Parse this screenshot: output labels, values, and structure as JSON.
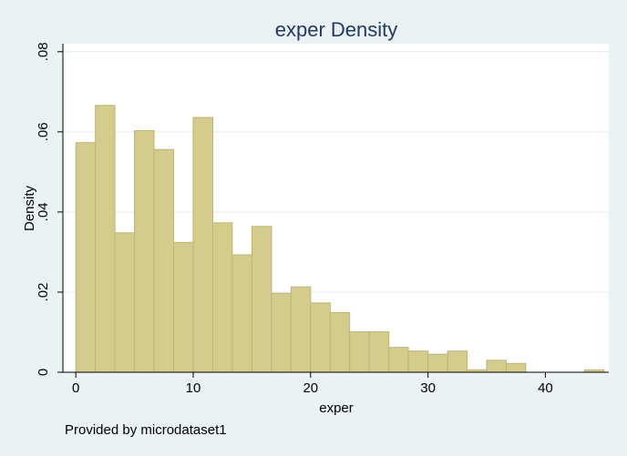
{
  "chart_data": {
    "type": "bar",
    "title": "exper Density",
    "xlabel": "exper",
    "ylabel": "Density",
    "note": "Provided by microdataset1",
    "xlim": [
      -1.1,
      45.4
    ],
    "ylim": [
      0,
      0.082
    ],
    "xticks": [
      0,
      10,
      20,
      30,
      40
    ],
    "xtick_labels": [
      "0",
      "10",
      "20",
      "30",
      "40"
    ],
    "yticks": [
      0,
      0.02,
      0.04,
      0.06,
      0.08
    ],
    "ytick_labels": [
      "0",
      ".02",
      ".04",
      ".06",
      ".08"
    ],
    "grid": true,
    "bins": [
      {
        "x0": 0.0,
        "x1": 1.67,
        "value": 0.0573
      },
      {
        "x0": 1.67,
        "x1": 3.33,
        "value": 0.0666
      },
      {
        "x0": 3.33,
        "x1": 5.0,
        "value": 0.0348
      },
      {
        "x0": 5.0,
        "x1": 6.67,
        "value": 0.0603
      },
      {
        "x0": 6.67,
        "x1": 8.33,
        "value": 0.0556
      },
      {
        "x0": 8.33,
        "x1": 10.0,
        "value": 0.0324
      },
      {
        "x0": 10.0,
        "x1": 11.67,
        "value": 0.0636
      },
      {
        "x0": 11.67,
        "x1": 13.33,
        "value": 0.0373
      },
      {
        "x0": 13.33,
        "x1": 15.0,
        "value": 0.0293
      },
      {
        "x0": 15.0,
        "x1": 16.67,
        "value": 0.0364
      },
      {
        "x0": 16.67,
        "x1": 18.33,
        "value": 0.0197
      },
      {
        "x0": 18.33,
        "x1": 20.0,
        "value": 0.0213
      },
      {
        "x0": 20.0,
        "x1": 21.67,
        "value": 0.0173
      },
      {
        "x0": 21.67,
        "x1": 23.33,
        "value": 0.0149
      },
      {
        "x0": 23.33,
        "x1": 25.0,
        "value": 0.0101
      },
      {
        "x0": 25.0,
        "x1": 26.67,
        "value": 0.0101
      },
      {
        "x0": 26.67,
        "x1": 28.33,
        "value": 0.0062
      },
      {
        "x0": 28.33,
        "x1": 30.0,
        "value": 0.0053
      },
      {
        "x0": 30.0,
        "x1": 31.67,
        "value": 0.0045
      },
      {
        "x0": 31.67,
        "x1": 33.33,
        "value": 0.0053
      },
      {
        "x0": 33.33,
        "x1": 35.0,
        "value": 0.0006
      },
      {
        "x0": 35.0,
        "x1": 36.67,
        "value": 0.003
      },
      {
        "x0": 36.67,
        "x1": 38.33,
        "value": 0.0022
      },
      {
        "x0": 38.33,
        "x1": 40.0,
        "value": 0
      },
      {
        "x0": 40.0,
        "x1": 41.67,
        "value": 0
      },
      {
        "x0": 41.67,
        "x1": 43.33,
        "value": 0
      },
      {
        "x0": 43.33,
        "x1": 45.0,
        "value": 0.0006
      }
    ],
    "colors": {
      "background": "#eaf2f3",
      "plot_background": "#ffffff",
      "bar_fill": "#d4cc8d",
      "bar_stroke": "#bcb576",
      "grid": "#e7eef0",
      "axis": "#000000",
      "title": "#1f3a66"
    }
  }
}
